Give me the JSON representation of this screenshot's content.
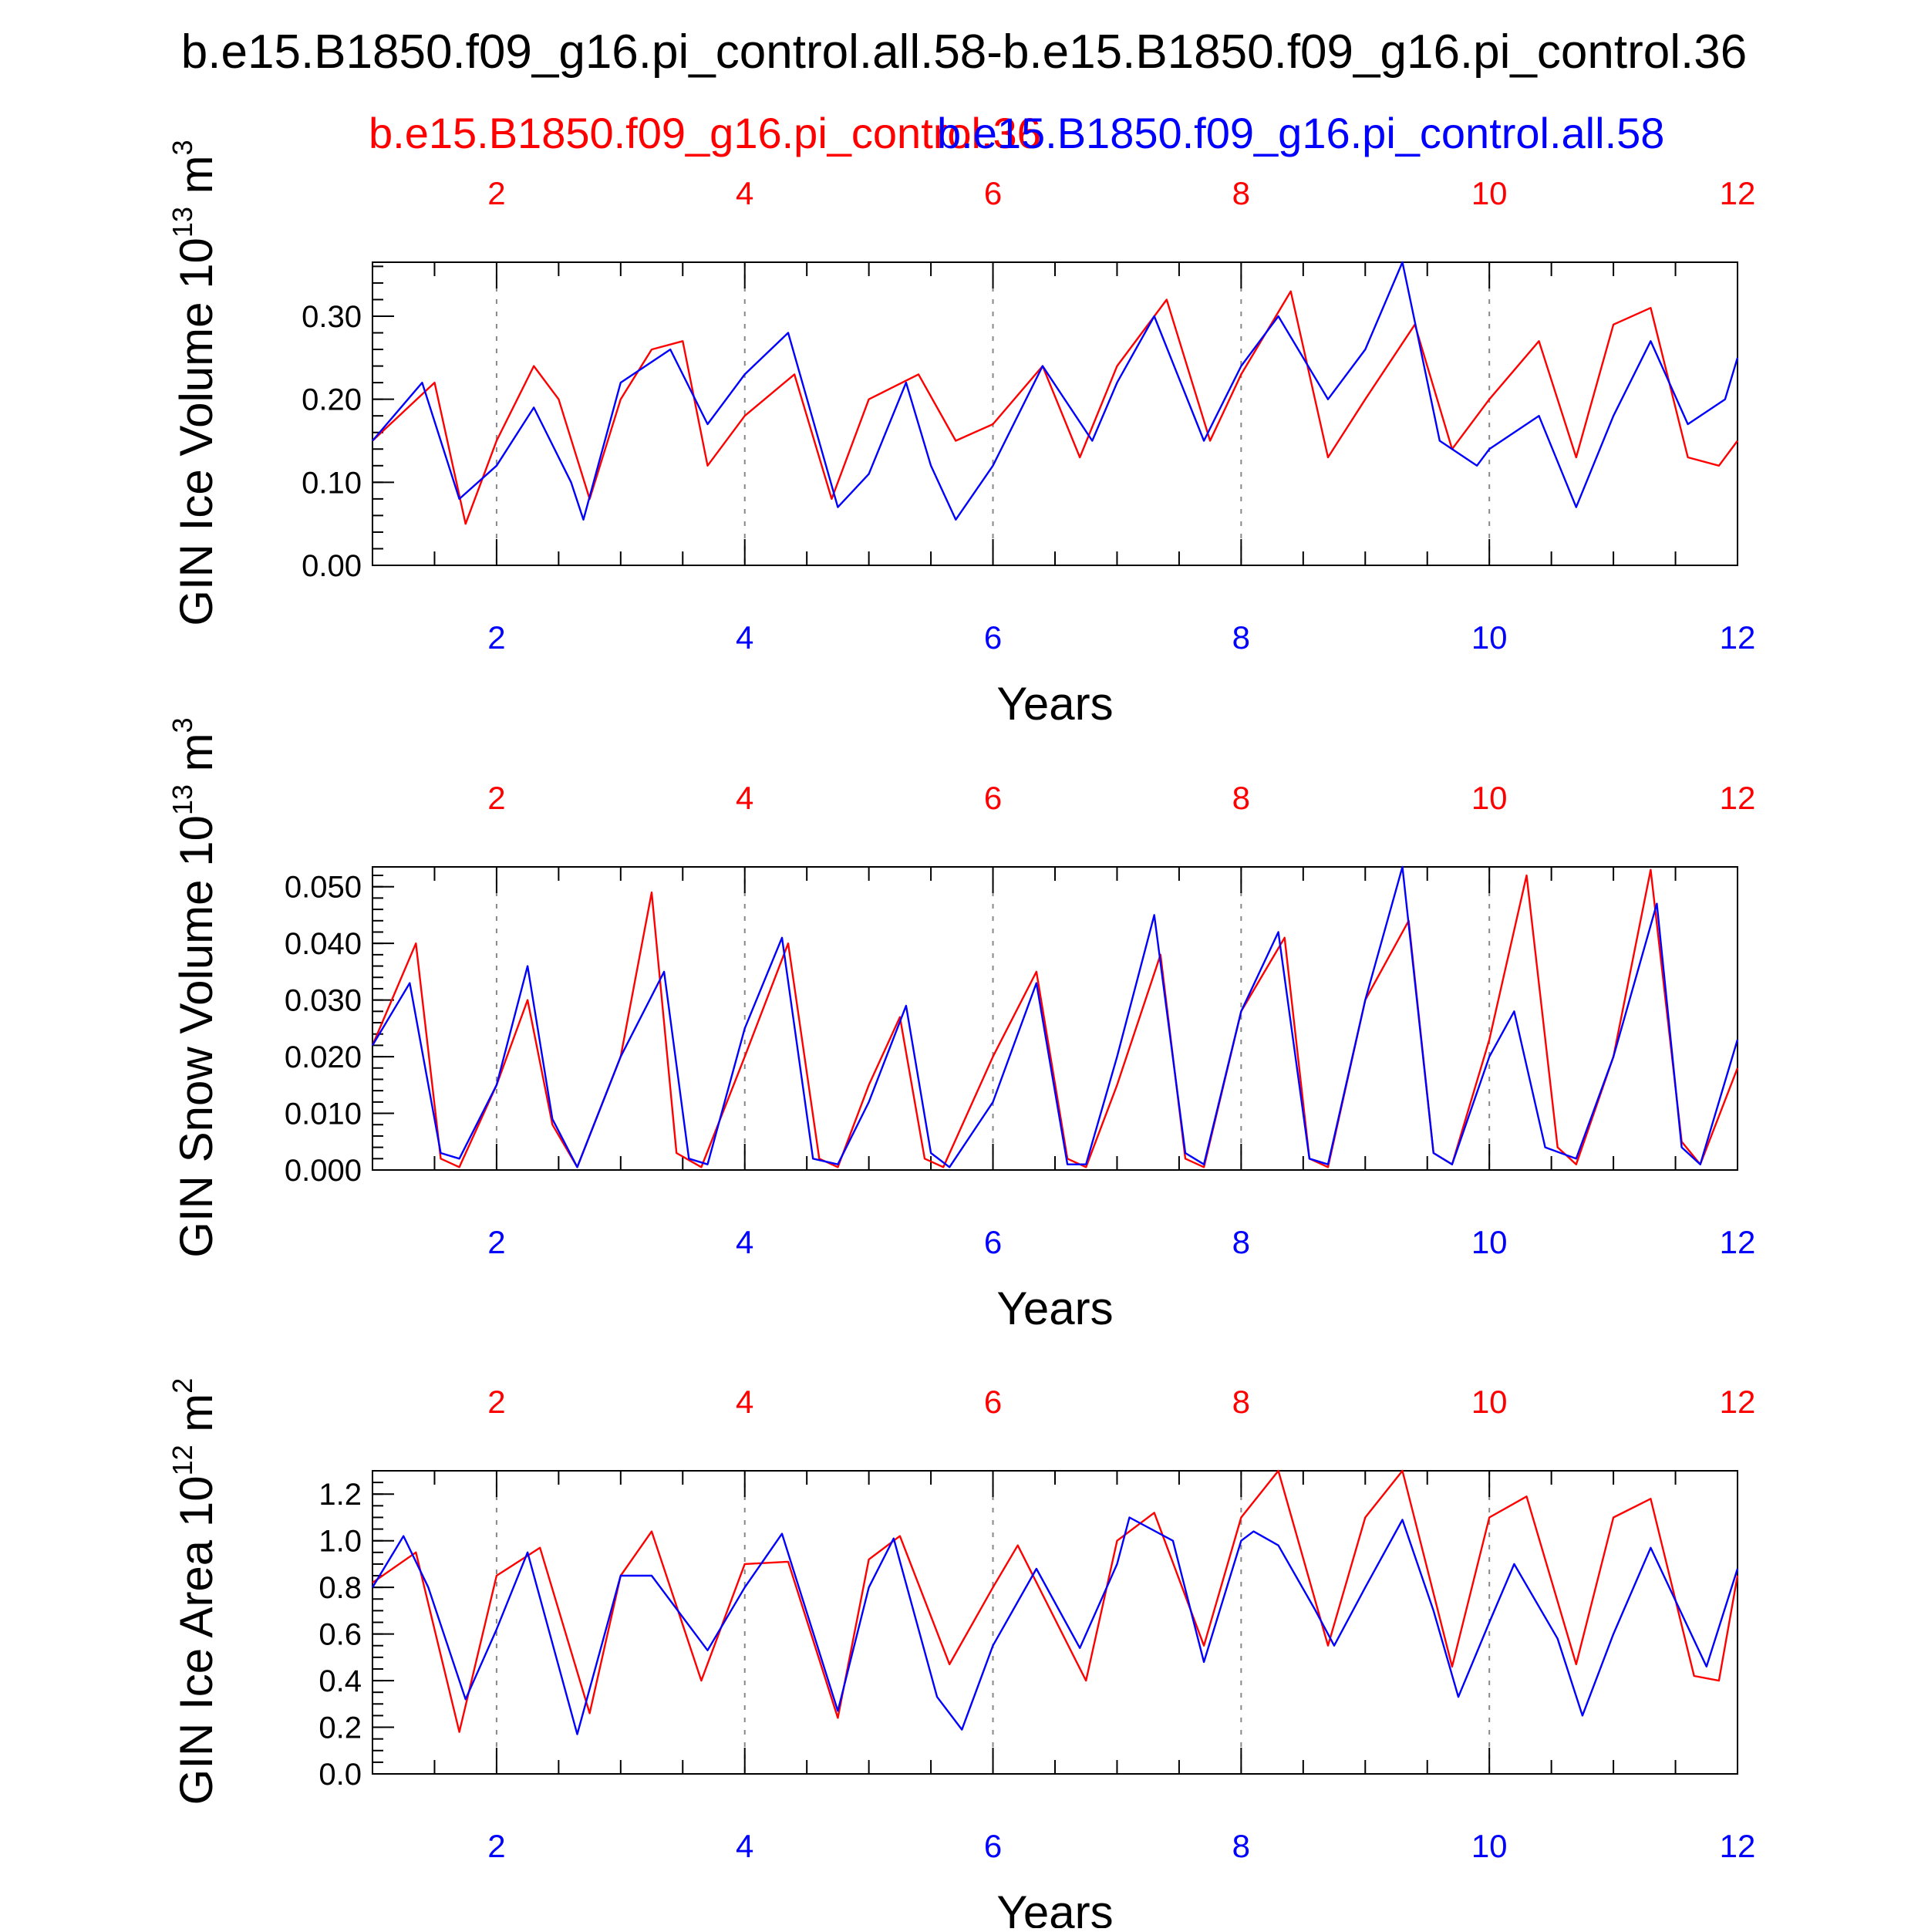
{
  "title": "b.e15.B1850.f09_g16.pi_control.all.58-b.e15.B1850.f09_g16.pi_control.36",
  "legend": {
    "red_label": "b.e15.B1850.f09_g16.pi_control.36",
    "blue_label": "b.e15.B1850.f09_g16.pi_control.all.58"
  },
  "colors": {
    "red": "#ff0000",
    "blue": "#0000ff",
    "axis": "#000000",
    "grid": "#888888"
  },
  "chart_data": [
    {
      "type": "line",
      "ylabel": "GIN Ice Volume 10",
      "ylabel_sup": "13",
      "ylabel_unit": " m",
      "ylabel_unit_sup": "3",
      "xlabel": "Years",
      "xlim": [
        1,
        12
      ],
      "ylim": [
        0,
        0.365
      ],
      "xticks": [
        2,
        4,
        6,
        8,
        10,
        12
      ],
      "yticks": [
        0.0,
        0.1,
        0.2,
        0.3
      ],
      "ytick_labels": [
        "0.00",
        "0.10",
        "0.20",
        "0.30"
      ],
      "yminor_step": 0.02,
      "series": [
        {
          "name": "b.e15.B1850.f09_g16.pi_control.36",
          "color": "red",
          "x": [
            1.0,
            1.5,
            1.75,
            2.0,
            2.3,
            2.5,
            2.75,
            3.0,
            3.25,
            3.5,
            3.7,
            4.0,
            4.4,
            4.7,
            5.0,
            5.4,
            5.7,
            6.0,
            6.4,
            6.7,
            7.0,
            7.4,
            7.75,
            8.0,
            8.4,
            8.7,
            9.0,
            9.4,
            9.7,
            10.0,
            10.4,
            10.7,
            11.0,
            11.3,
            11.6,
            11.85,
            12.0
          ],
          "y": [
            0.15,
            0.22,
            0.05,
            0.15,
            0.24,
            0.2,
            0.08,
            0.2,
            0.26,
            0.27,
            0.12,
            0.18,
            0.23,
            0.08,
            0.2,
            0.23,
            0.15,
            0.17,
            0.24,
            0.13,
            0.24,
            0.32,
            0.15,
            0.23,
            0.33,
            0.13,
            0.2,
            0.29,
            0.14,
            0.2,
            0.27,
            0.13,
            0.29,
            0.31,
            0.13,
            0.12,
            0.15
          ]
        },
        {
          "name": "b.e15.B1850.f09_g16.pi_control.all.58",
          "color": "blue",
          "x": [
            1.0,
            1.4,
            1.7,
            2.0,
            2.3,
            2.6,
            2.7,
            3.0,
            3.4,
            3.7,
            4.0,
            4.35,
            4.75,
            5.0,
            5.3,
            5.5,
            5.7,
            6.0,
            6.4,
            6.8,
            7.0,
            7.3,
            7.7,
            8.0,
            8.3,
            8.7,
            9.0,
            9.3,
            9.6,
            9.9,
            10.0,
            10.4,
            10.7,
            11.0,
            11.3,
            11.6,
            11.9,
            12.0
          ],
          "y": [
            0.15,
            0.22,
            0.08,
            0.12,
            0.19,
            0.1,
            0.055,
            0.22,
            0.26,
            0.17,
            0.23,
            0.28,
            0.07,
            0.11,
            0.22,
            0.12,
            0.055,
            0.12,
            0.24,
            0.15,
            0.22,
            0.3,
            0.15,
            0.24,
            0.3,
            0.2,
            0.26,
            0.365,
            0.15,
            0.12,
            0.14,
            0.18,
            0.07,
            0.18,
            0.27,
            0.17,
            0.2,
            0.25
          ]
        }
      ]
    },
    {
      "type": "line",
      "ylabel": "GIN Snow Volume 10",
      "ylabel_sup": "13",
      "ylabel_unit": " m",
      "ylabel_unit_sup": "3",
      "xlabel": "Years",
      "xlim": [
        1,
        12
      ],
      "ylim": [
        0,
        0.0535
      ],
      "xticks": [
        2,
        4,
        6,
        8,
        10,
        12
      ],
      "yticks": [
        0.0,
        0.01,
        0.02,
        0.03,
        0.04,
        0.05
      ],
      "ytick_labels": [
        "0.000",
        "0.010",
        "0.020",
        "0.030",
        "0.040",
        "0.050"
      ],
      "yminor_step": 0.002,
      "series": [
        {
          "name": "b.e15.B1850.f09_g16.pi_control.36",
          "color": "red",
          "x": [
            1.0,
            1.35,
            1.55,
            1.7,
            2.0,
            2.25,
            2.45,
            2.65,
            3.0,
            3.25,
            3.45,
            3.65,
            4.0,
            4.35,
            4.6,
            4.75,
            5.0,
            5.25,
            5.45,
            5.6,
            6.0,
            6.35,
            6.6,
            6.75,
            7.0,
            7.35,
            7.55,
            7.7,
            8.0,
            8.35,
            8.55,
            8.7,
            9.0,
            9.35,
            9.55,
            9.7,
            10.0,
            10.3,
            10.55,
            10.7,
            11.0,
            11.3,
            11.55,
            11.7,
            12.0
          ],
          "y": [
            0.022,
            0.04,
            0.002,
            0.0005,
            0.015,
            0.03,
            0.008,
            0.0005,
            0.02,
            0.049,
            0.003,
            0.0005,
            0.02,
            0.04,
            0.002,
            0.0005,
            0.015,
            0.027,
            0.002,
            0.0005,
            0.02,
            0.035,
            0.002,
            0.0005,
            0.015,
            0.038,
            0.002,
            0.0005,
            0.028,
            0.041,
            0.002,
            0.0005,
            0.03,
            0.044,
            0.003,
            0.001,
            0.023,
            0.052,
            0.004,
            0.001,
            0.02,
            0.053,
            0.005,
            0.001,
            0.018
          ]
        },
        {
          "name": "b.e15.B1850.f09_g16.pi_control.all.58",
          "color": "blue",
          "x": [
            1.0,
            1.3,
            1.55,
            1.7,
            2.0,
            2.25,
            2.45,
            2.65,
            3.0,
            3.35,
            3.55,
            3.7,
            4.0,
            4.3,
            4.55,
            4.75,
            5.0,
            5.3,
            5.5,
            5.65,
            6.0,
            6.35,
            6.6,
            6.75,
            7.0,
            7.3,
            7.55,
            7.7,
            8.0,
            8.3,
            8.55,
            8.7,
            9.0,
            9.3,
            9.55,
            9.7,
            10.0,
            10.2,
            10.45,
            10.7,
            11.0,
            11.35,
            11.55,
            11.7,
            12.0
          ],
          "y": [
            0.022,
            0.033,
            0.003,
            0.002,
            0.015,
            0.036,
            0.009,
            0.0005,
            0.02,
            0.035,
            0.002,
            0.001,
            0.025,
            0.041,
            0.002,
            0.001,
            0.012,
            0.029,
            0.003,
            0.0005,
            0.012,
            0.033,
            0.001,
            0.001,
            0.02,
            0.045,
            0.003,
            0.001,
            0.028,
            0.042,
            0.002,
            0.001,
            0.03,
            0.054,
            0.003,
            0.001,
            0.02,
            0.028,
            0.004,
            0.002,
            0.02,
            0.047,
            0.004,
            0.001,
            0.023
          ]
        }
      ]
    },
    {
      "type": "line",
      "ylabel": "GIN Ice Area 10",
      "ylabel_sup": "12",
      "ylabel_unit": " m",
      "ylabel_unit_sup": "2",
      "xlabel": "Years",
      "xlim": [
        1,
        12
      ],
      "ylim": [
        0,
        1.3
      ],
      "xticks": [
        2,
        4,
        6,
        8,
        10,
        12
      ],
      "yticks": [
        0.0,
        0.2,
        0.4,
        0.6,
        0.8,
        1.0,
        1.2
      ],
      "ytick_labels": [
        "0.0",
        "0.2",
        "0.4",
        "0.6",
        "0.8",
        "1.0",
        "1.2"
      ],
      "yminor_step": 0.05,
      "series": [
        {
          "name": "b.e15.B1850.f09_g16.pi_control.36",
          "color": "red",
          "x": [
            1.0,
            1.35,
            1.7,
            2.0,
            2.35,
            2.75,
            3.0,
            3.25,
            3.65,
            4.0,
            4.35,
            4.75,
            5.0,
            5.25,
            5.65,
            6.0,
            6.2,
            6.75,
            7.0,
            7.3,
            7.7,
            8.0,
            8.3,
            8.7,
            9.0,
            9.3,
            9.7,
            10.0,
            10.3,
            10.7,
            11.0,
            11.3,
            11.65,
            11.85,
            12.0
          ],
          "y": [
            0.82,
            0.95,
            0.18,
            0.85,
            0.97,
            0.26,
            0.85,
            1.04,
            0.4,
            0.9,
            0.91,
            0.24,
            0.92,
            1.02,
            0.47,
            0.8,
            0.98,
            0.4,
            1.0,
            1.12,
            0.55,
            1.1,
            1.32,
            0.55,
            1.1,
            1.3,
            0.46,
            1.1,
            1.19,
            0.47,
            1.1,
            1.18,
            0.42,
            0.4,
            0.85
          ]
        },
        {
          "name": "b.e15.B1850.f09_g16.pi_control.all.58",
          "color": "blue",
          "x": [
            1.0,
            1.25,
            1.45,
            1.75,
            2.0,
            2.25,
            2.65,
            3.0,
            3.25,
            3.7,
            4.0,
            4.3,
            4.75,
            5.0,
            5.2,
            5.55,
            5.75,
            6.0,
            6.35,
            6.7,
            7.0,
            7.1,
            7.45,
            7.7,
            8.0,
            8.1,
            8.3,
            8.6,
            8.75,
            9.0,
            9.3,
            9.55,
            9.75,
            10.0,
            10.2,
            10.55,
            10.75,
            11.0,
            11.3,
            11.75,
            12.0
          ],
          "y": [
            0.8,
            1.02,
            0.8,
            0.32,
            0.62,
            0.95,
            0.17,
            0.85,
            0.85,
            0.53,
            0.8,
            1.03,
            0.27,
            0.8,
            1.01,
            0.33,
            0.19,
            0.55,
            0.88,
            0.54,
            0.9,
            1.1,
            1.0,
            0.48,
            1.0,
            1.04,
            0.98,
            0.7,
            0.55,
            0.8,
            1.09,
            0.7,
            0.33,
            0.65,
            0.9,
            0.58,
            0.25,
            0.6,
            0.97,
            0.46,
            0.88
          ]
        }
      ]
    }
  ]
}
